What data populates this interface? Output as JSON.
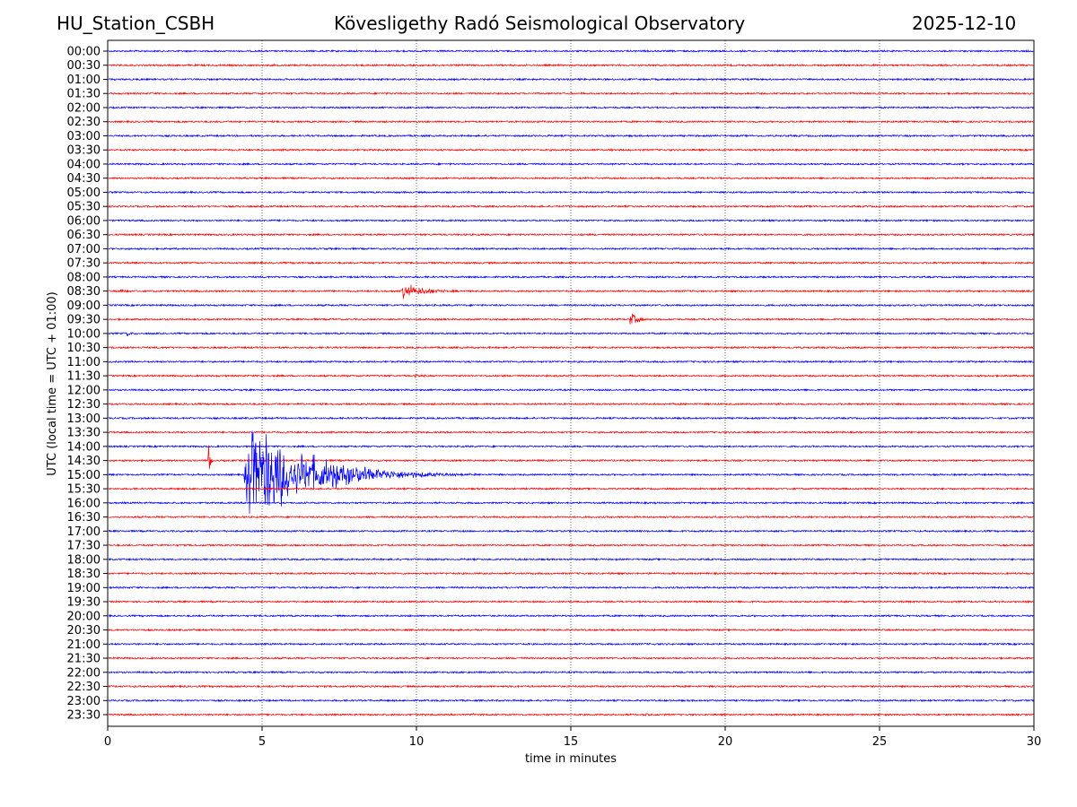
{
  "header": {
    "station": "HU_Station_CSBH",
    "title": "Kövesligethy Radó Seismological Observatory",
    "date": "2025-12-10"
  },
  "chart_data": {
    "type": "line",
    "subtype": "helicorder",
    "xlabel": "time in minutes",
    "ylabel": "UTC (local time = UTC + 01:00)",
    "xlim": [
      0,
      30
    ],
    "xticks": [
      0,
      5,
      10,
      15,
      20,
      25,
      30
    ],
    "grid": "vertical dotted at x ticks",
    "trace_colors": [
      "#0000ff",
      "#ff0000"
    ],
    "rows": [
      "00:00",
      "00:30",
      "01:00",
      "01:30",
      "02:00",
      "02:30",
      "03:00",
      "03:30",
      "04:00",
      "04:30",
      "05:00",
      "05:30",
      "06:00",
      "06:30",
      "07:00",
      "07:30",
      "08:00",
      "08:30",
      "09:00",
      "09:30",
      "10:00",
      "10:30",
      "11:00",
      "11:30",
      "12:00",
      "12:30",
      "13:00",
      "13:30",
      "14:00",
      "14:30",
      "15:00",
      "15:30",
      "16:00",
      "16:30",
      "17:00",
      "17:30",
      "18:00",
      "18:30",
      "19:00",
      "19:30",
      "20:00",
      "20:30",
      "21:00",
      "21:30",
      "22:00",
      "22:30",
      "23:00",
      "23:30"
    ],
    "events": [
      {
        "row": "03:30",
        "start_min": 16.3,
        "duration_min": 0.2,
        "relative_amplitude": 0.15
      },
      {
        "row": "08:30",
        "start_min": 0.4,
        "duration_min": 0.5,
        "relative_amplitude": 0.4
      },
      {
        "row": "08:30",
        "start_min": 9.5,
        "duration_min": 3.0,
        "relative_amplitude": 0.5
      },
      {
        "row": "09:30",
        "start_min": 16.9,
        "duration_min": 1.0,
        "relative_amplitude": 0.6
      },
      {
        "row": "10:00",
        "start_min": 0.6,
        "duration_min": 1.2,
        "relative_amplitude": 0.2
      },
      {
        "row": "11:30",
        "start_min": 9.9,
        "duration_min": 1.6,
        "relative_amplitude": 0.15
      },
      {
        "row": "14:30",
        "start_min": 3.25,
        "duration_min": 0.25,
        "relative_amplitude": 1.1
      },
      {
        "row": "15:00",
        "start_min": 4.4,
        "duration_min": 7.5,
        "relative_amplitude": 3.3
      },
      {
        "row": "15:00",
        "start_min": 7.4,
        "duration_min": 1.2,
        "relative_amplitude": 0.9
      },
      {
        "row": "23:30",
        "start_min": 11.8,
        "duration_min": 0.6,
        "relative_amplitude": 0.15
      },
      {
        "row": "23:30",
        "start_min": 17.4,
        "duration_min": 0.6,
        "relative_amplitude": 0.15
      }
    ]
  }
}
